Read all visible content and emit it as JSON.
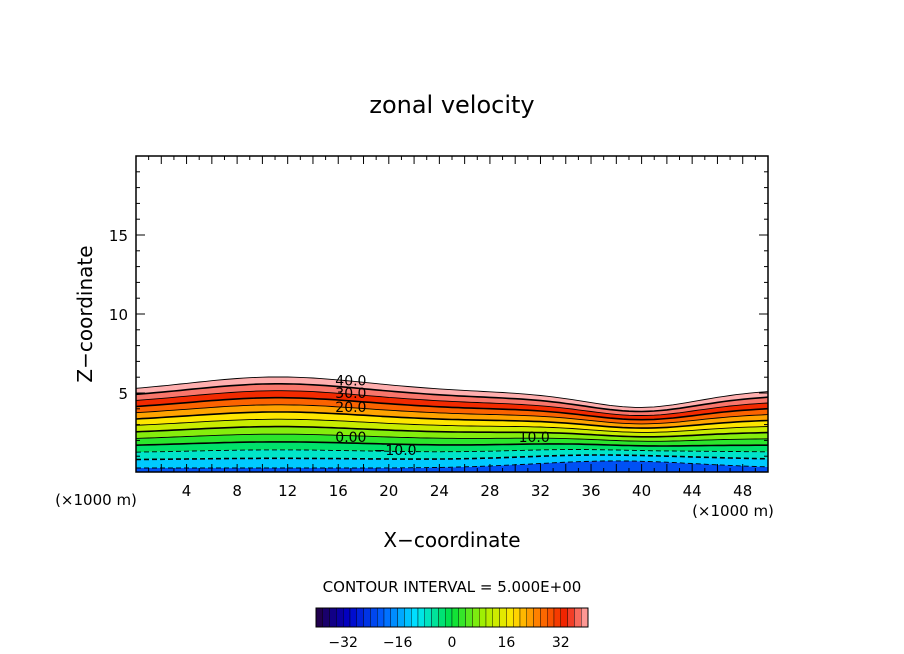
{
  "chart_data": {
    "type": "contour",
    "title": "zonal velocity",
    "xlabel": "X−coordinate",
    "ylabel": "Z−coordinate",
    "x_unit": "(×1000 m)",
    "y_unit": "(×1000 m)",
    "xlim": [
      0,
      50
    ],
    "ylim": [
      0,
      20
    ],
    "x_ticks": [
      4,
      8,
      12,
      16,
      20,
      24,
      28,
      32,
      36,
      40,
      44,
      48
    ],
    "y_ticks": [
      5,
      10,
      15
    ],
    "contour_interval_text": "CONTOUR INTERVAL = 5.000E+00",
    "contour_labels": [
      {
        "text": "40.0",
        "x": 17,
        "z": 5.8
      },
      {
        "text": "30.0",
        "x": 17,
        "z": 5.0
      },
      {
        "text": "20.0",
        "x": 17,
        "z": 4.1
      },
      {
        "text": "0.00",
        "x": 17,
        "z": 2.2
      },
      {
        "text": "10.0",
        "x": 31.5,
        "z": 2.2
      },
      {
        "text": "−10.0",
        "x": 20.5,
        "z": 1.4
      }
    ],
    "colorbar": {
      "min": -40,
      "max": 40,
      "tick_labels": [
        "−32",
        "−16",
        "0",
        "16",
        "32"
      ],
      "tick_values": [
        -32,
        -16,
        0,
        16,
        32
      ]
    }
  }
}
